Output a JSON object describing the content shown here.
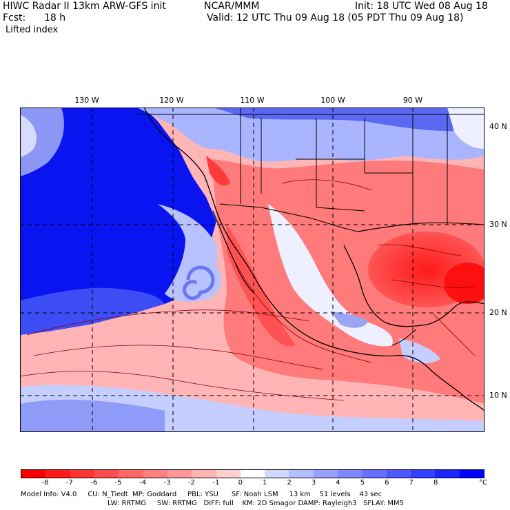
{
  "header": {
    "title": "HIWC Radar II 13km ARW-GFS init",
    "org": "NCAR/MMM",
    "init": "Init: 18 UTC Wed 08 Aug 18",
    "fcst_label": "Fcst:",
    "fcst_value": "18 h",
    "valid": "Valid: 12 UTC Thu 09 Aug 18 (05 PDT Thu 09 Aug 18)",
    "field": "Lifted index"
  },
  "map": {
    "lon_labels": [
      "130 W",
      "120 W",
      "110 W",
      "100 W",
      "90 W"
    ],
    "lat_labels": [
      "40 N",
      "30 N",
      "20 N",
      "10 N"
    ],
    "colors": {
      "positive": "#0000ff",
      "negative": "#ff0000",
      "neutral": "#ffffff",
      "land_line": "#000000"
    }
  },
  "colorbar": {
    "ticks": [
      "-8",
      "-7",
      "-6",
      "-5",
      "-4",
      "-3",
      "-2",
      "-1",
      "0",
      "1",
      "2",
      "3",
      "4",
      "5",
      "6",
      "7",
      "8"
    ],
    "unit": "°C",
    "colors": [
      "#ff0000",
      "#ff1a1a",
      "#ff3333",
      "#ff4d4d",
      "#ff6666",
      "#ff8080",
      "#ff9999",
      "#ffb3b3",
      "#ffd0d0",
      "#ffffff",
      "#d0d8ff",
      "#b3bfff",
      "#999fff",
      "#8088ff",
      "#6670ff",
      "#4d58ff",
      "#3340ff",
      "#1a26ff",
      "#0000ff"
    ]
  },
  "footer": {
    "line1": "Model Info: V4.0     CU: N_Tiedt  MP: Goddard     PBL: YSU      SF: Noah LSM     13 km    51 levels    43 sec",
    "line2": "LW: RRTMG     SW: RRTMG   DIFF: full    KM: 2D Smagor DAMP: Rayleigh3   SFLAY: MM5"
  }
}
